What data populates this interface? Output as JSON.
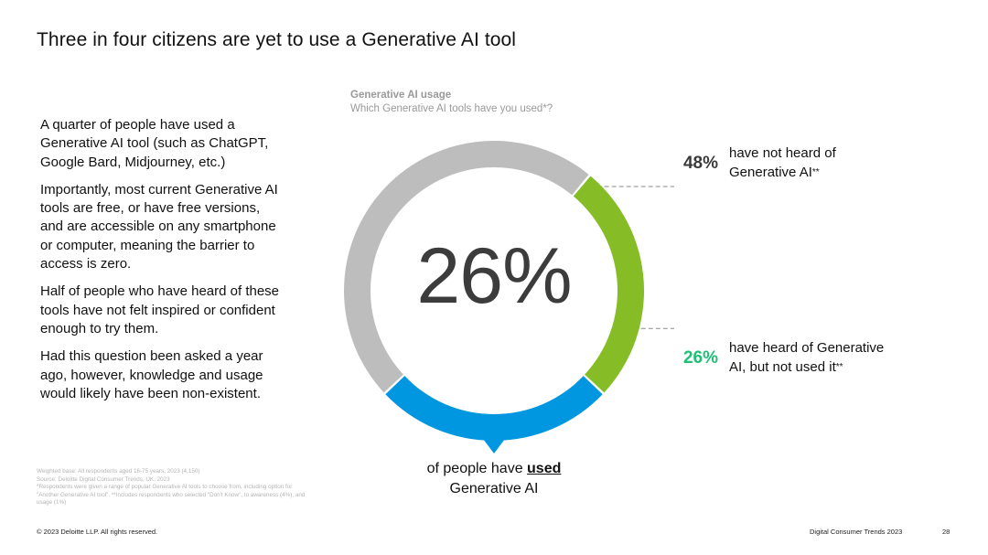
{
  "title": "Three in four citizens are yet to use a Generative AI tool",
  "body_paragraphs": [
    "A quarter of people have used a Generative AI tool (such as ChatGPT, Google Bard, Midjourney, etc.)",
    "Importantly, most current Generative AI tools are free, or have free versions, and are accessible on any smartphone or computer, meaning the barrier to access is zero.",
    "Half of people who have heard of these tools have not felt inspired or confident enough to try them.",
    "Had this question been asked a year ago, however, knowledge and usage would likely have been non-existent."
  ],
  "notes": [
    "Weighted base: All respondents aged 16-75 years, 2023 (4,150)",
    "Source: Deloitte Digital Consumer Trends, UK, 2023",
    "*Respondents were given a range of popular Generative AI tools to choose from, including option for \"Another Generative AI tool\". **Includes respondents who selected \"Don't Know\", to awareness (4%), and usage (1%)"
  ],
  "footer": {
    "copyright": "© 2023 Deloitte LLP. All rights reserved.",
    "report": "Digital Consumer Trends 2023",
    "page": "28"
  },
  "chart_data": {
    "type": "pie",
    "donut": true,
    "title": "Generative AI usage",
    "subtitle": "Which Generative AI tools have you used*?",
    "center_label": "26%",
    "caption_prefix": "of people have ",
    "caption_emphasis": "used",
    "caption_suffix": "Generative AI",
    "slices": [
      {
        "value": 48,
        "pct_label": "48%",
        "label": "have not heard of Generative AI",
        "footnote": "**",
        "color": "#bdbdbd"
      },
      {
        "value": 26,
        "pct_label": "26%",
        "label": "have heard of Generative AI, but not used it",
        "footnote": "**",
        "color": "#86bc25"
      },
      {
        "value": 26,
        "pct_label": "26%",
        "label": "have used Generative AI",
        "color": "#0097e0"
      }
    ],
    "colors": {
      "pct_48": "#3a3a3a",
      "pct_26": "#1fbf76",
      "connector": "#8a8a8a"
    }
  }
}
